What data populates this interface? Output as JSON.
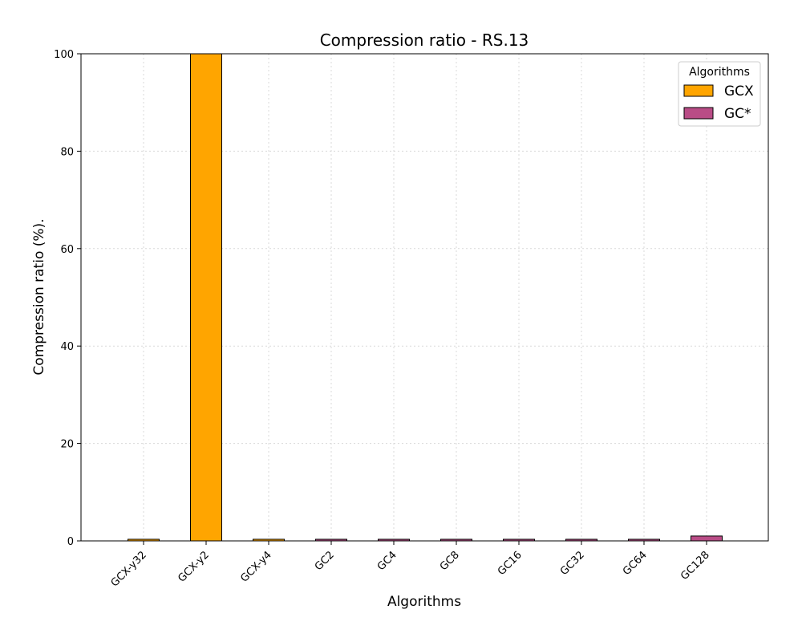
{
  "chart_data": {
    "type": "bar",
    "title": "Compression ratio -  RS.13",
    "xlabel": "Algorithms",
    "ylabel": "Compression ratio (%).",
    "categories": [
      "GCX-y32",
      "GCX-y2",
      "GCX-y4",
      "GC2",
      "GC4",
      "GC8",
      "GC16",
      "GC32",
      "GC64",
      "GC128"
    ],
    "values": [
      0.2,
      100,
      0.2,
      0.2,
      0.2,
      0.2,
      0.2,
      0.2,
      0.3,
      1.0
    ],
    "bar_group": [
      "GCX",
      "GCX",
      "GCX",
      "GC*",
      "GC*",
      "GC*",
      "GC*",
      "GC*",
      "GC*",
      "GC*"
    ],
    "ylim": [
      0,
      100
    ],
    "yticks": [
      0,
      20,
      40,
      60,
      80,
      100
    ],
    "grid": true,
    "legend": {
      "title": "Algorithms",
      "placement": "top-right",
      "entries": [
        {
          "label": "GCX",
          "color": "#ffa500"
        },
        {
          "label": "GC*",
          "color": "#b94c86"
        }
      ]
    }
  }
}
